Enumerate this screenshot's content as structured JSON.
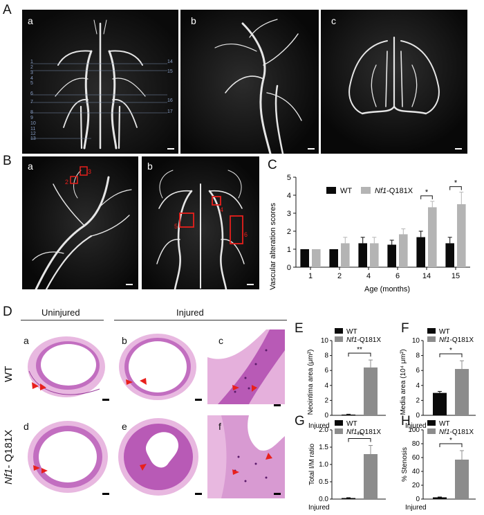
{
  "panels": {
    "A": {
      "letter": "A",
      "sub": [
        "a",
        "b",
        "c"
      ],
      "left_annotations": [
        "1",
        "2",
        "3",
        "4",
        "5",
        "6",
        "7",
        "8",
        "9",
        "10",
        "11",
        "12",
        "13"
      ],
      "right_annotations": [
        "14",
        "15",
        "16",
        "17"
      ]
    },
    "B": {
      "letter": "B",
      "sub": [
        "a",
        "b"
      ],
      "box_labels_a": [
        "2",
        "3"
      ],
      "box_labels_b": [
        "4",
        "5",
        "6"
      ]
    },
    "C": {
      "letter": "C"
    },
    "D": {
      "letter": "D",
      "col_uninjured": "Uninjured",
      "col_injured": "Injured",
      "sub": [
        "a",
        "b",
        "c",
        "d",
        "e",
        "f"
      ],
      "row_wt": "WT",
      "row_nf1_italic": "Nf1",
      "row_nf1_rest": "- Q181X"
    },
    "E": {
      "letter": "E"
    },
    "F": {
      "letter": "F"
    },
    "G": {
      "letter": "G"
    },
    "H": {
      "letter": "H"
    }
  },
  "colors": {
    "wt": "#0a0a0a",
    "nf1": "#b4b4b4",
    "nf1_small": "#8c8c8c",
    "arrow": "#e8201c",
    "box": "#e8201c",
    "he_pink": "#e0a0d4",
    "he_purple": "#9b3f9e"
  },
  "chart_data": [
    {
      "id": "C",
      "type": "bar",
      "ylabel": "Vascular alteration scores",
      "xlabel": "Age (months)",
      "categories": [
        "1",
        "2",
        "4",
        "6",
        "14",
        "15"
      ],
      "ylim": [
        0,
        5
      ],
      "yticks": [
        "0",
        "1",
        "2",
        "3",
        "4",
        "5"
      ],
      "series": [
        {
          "name": "WT",
          "values": [
            1.0,
            1.0,
            1.33,
            1.25,
            1.67,
            1.33
          ],
          "errors": [
            0,
            0,
            0.33,
            0.25,
            0.33,
            0.33
          ]
        },
        {
          "name": "Nf1-Q181X",
          "values": [
            1.0,
            1.33,
            1.33,
            1.83,
            3.33,
            3.5
          ],
          "errors": [
            0,
            0.33,
            0.33,
            0.3,
            0.33,
            0.67
          ]
        }
      ],
      "legend": {
        "wt": "WT",
        "nf1_italic": "Nf1",
        "nf1_rest": "-Q181X"
      },
      "significance": [
        {
          "category": "14",
          "label": "*"
        },
        {
          "category": "15",
          "label": "*"
        }
      ]
    },
    {
      "id": "E",
      "type": "bar",
      "ylabel": "Neointima area (μm²)",
      "xlabel": "Injured",
      "ylim": [
        0,
        10
      ],
      "yticks": [
        "0",
        "2",
        "4",
        "6",
        "8",
        "10"
      ],
      "series": [
        {
          "name": "WT",
          "value": 0.1,
          "error": 0.05
        },
        {
          "name": "Nf1-Q181X",
          "value": 6.4,
          "error": 1.0
        }
      ],
      "legend": {
        "wt": "WT",
        "nf1_italic": "Nf1",
        "nf1_rest": "-Q181X"
      },
      "significance": "**"
    },
    {
      "id": "F",
      "type": "bar",
      "ylabel": "Media area (10⁴ μm²)",
      "xlabel": "Injured",
      "ylim": [
        0,
        10
      ],
      "yticks": [
        "0",
        "2",
        "4",
        "6",
        "8",
        "10"
      ],
      "series": [
        {
          "name": "WT",
          "value": 3.0,
          "error": 0.2
        },
        {
          "name": "Nf1-Q181X",
          "value": 6.2,
          "error": 1.1
        }
      ],
      "legend": {
        "wt": "WT",
        "nf1_italic": "Nf1",
        "nf1_rest": "-Q181X"
      },
      "significance": "*"
    },
    {
      "id": "G",
      "type": "bar",
      "ylabel": "Total I/M ratio",
      "xlabel": "Injured",
      "ylim": [
        0,
        2.0
      ],
      "yticks": [
        "0.0",
        "0.5",
        "1.0",
        "1.5",
        "2.0"
      ],
      "series": [
        {
          "name": "WT",
          "value": 0.03,
          "error": 0.01
        },
        {
          "name": "Nf1-Q181X",
          "value": 1.3,
          "error": 0.25
        }
      ],
      "legend": {
        "wt": "WT",
        "nf1_italic": "Nf1",
        "nf1_rest": "-Q181X"
      },
      "significance": "**"
    },
    {
      "id": "H",
      "type": "bar",
      "ylabel": "% Stenosis",
      "xlabel": "Injured",
      "ylim": [
        0,
        100
      ],
      "yticks": [
        "0",
        "20",
        "40",
        "60",
        "80",
        "100"
      ],
      "series": [
        {
          "name": "WT",
          "value": 2.5,
          "error": 0.5
        },
        {
          "name": "Nf1-Q181X",
          "value": 57,
          "error": 13
        }
      ],
      "legend": {
        "wt": "WT",
        "nf1_italic": "Nf1",
        "nf1_rest": "-Q181X"
      },
      "significance": "*"
    }
  ]
}
